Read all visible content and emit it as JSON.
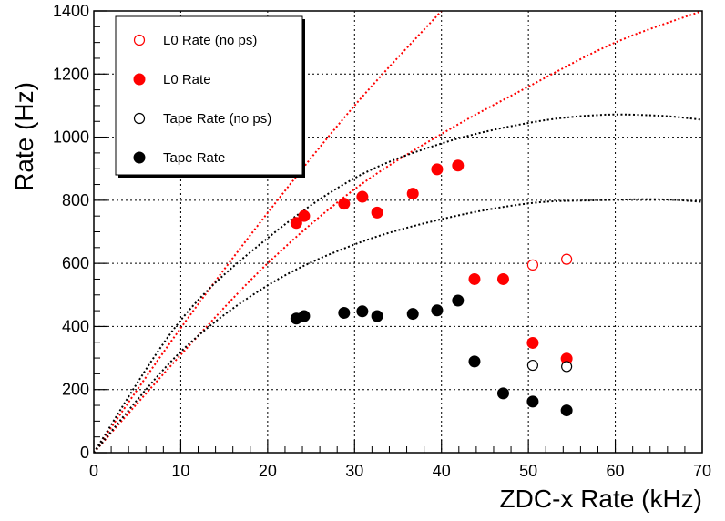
{
  "chart_data": {
    "type": "scatter",
    "xlabel": "ZDC-x Rate (kHz)",
    "ylabel": "Rate (Hz)",
    "xlim": [
      0,
      70
    ],
    "ylim": [
      0,
      1400
    ],
    "x_ticks": [
      0,
      10,
      20,
      30,
      40,
      50,
      60,
      70
    ],
    "y_ticks": [
      0,
      200,
      400,
      600,
      800,
      1000,
      1200,
      1400
    ],
    "grid": true,
    "legend_position": "top-left",
    "series": [
      {
        "name": "L0 Rate (no ps)",
        "color": "#ff0000",
        "marker": "open-circle",
        "points": [
          [
            50.5,
            595
          ],
          [
            54.4,
            613
          ]
        ]
      },
      {
        "name": "L0 Rate",
        "color": "#ff0000",
        "marker": "filled-circle",
        "points": [
          [
            23.3,
            728
          ],
          [
            24.2,
            750
          ],
          [
            28.8,
            789
          ],
          [
            30.9,
            811
          ],
          [
            32.6,
            761
          ],
          [
            36.7,
            821
          ],
          [
            39.5,
            898
          ],
          [
            41.9,
            910
          ],
          [
            43.8,
            550
          ],
          [
            47.1,
            550
          ],
          [
            50.5,
            348
          ],
          [
            54.4,
            298
          ]
        ]
      },
      {
        "name": "Tape Rate (no ps)",
        "color": "#000000",
        "marker": "open-circle",
        "points": [
          [
            50.5,
            277
          ],
          [
            54.4,
            273
          ]
        ]
      },
      {
        "name": "Tape Rate",
        "color": "#000000",
        "marker": "filled-circle",
        "points": [
          [
            23.3,
            425
          ],
          [
            24.2,
            433
          ],
          [
            28.8,
            443
          ],
          [
            30.9,
            448
          ],
          [
            32.6,
            433
          ],
          [
            36.7,
            440
          ],
          [
            39.5,
            451
          ],
          [
            41.9,
            482
          ],
          [
            43.8,
            289
          ],
          [
            47.1,
            188
          ],
          [
            50.5,
            162
          ],
          [
            54.4,
            134
          ]
        ]
      }
    ],
    "curves": [
      {
        "color": "#ff0000",
        "style": "dotted",
        "points": [
          [
            0,
            0
          ],
          [
            10,
            395
          ],
          [
            20,
            760
          ],
          [
            30,
            1100
          ],
          [
            40,
            1400
          ]
        ]
      },
      {
        "color": "#ff0000",
        "style": "dotted",
        "points": [
          [
            0,
            0
          ],
          [
            10,
            310
          ],
          [
            20,
            600
          ],
          [
            30,
            835
          ],
          [
            40,
            1010
          ],
          [
            50,
            1160
          ],
          [
            60,
            1300
          ],
          [
            70,
            1400
          ]
        ]
      },
      {
        "color": "#000000",
        "style": "dotted",
        "points": [
          [
            0,
            0
          ],
          [
            10,
            420
          ],
          [
            20,
            680
          ],
          [
            30,
            870
          ],
          [
            40,
            980
          ],
          [
            50,
            1045
          ],
          [
            58,
            1070
          ],
          [
            65,
            1068
          ],
          [
            70,
            1055
          ]
        ]
      },
      {
        "color": "#000000",
        "style": "dotted",
        "points": [
          [
            0,
            0
          ],
          [
            10,
            320
          ],
          [
            20,
            530
          ],
          [
            30,
            660
          ],
          [
            40,
            740
          ],
          [
            50,
            790
          ],
          [
            58,
            800
          ],
          [
            65,
            803
          ],
          [
            70,
            795
          ]
        ]
      }
    ]
  }
}
